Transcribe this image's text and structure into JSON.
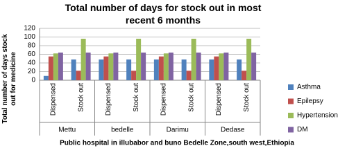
{
  "chart_data": {
    "type": "bar",
    "title": "Total number of days for  stock out in most recent 6 months",
    "y_label": "Total number of days stock out for medicine",
    "x_label": "Public hospital in illubabor and buno Bedelle Zone,south west,Ethiopia",
    "groups": [
      "Mettu",
      "bedelle",
      "Darimu",
      "Dedase"
    ],
    "categories": [
      "Dispensed",
      "Stock out",
      "Dispensed",
      "Stock out",
      "Dispensed",
      "Stock out",
      "Dispensed",
      "Stock out"
    ],
    "series": [
      {
        "name": "Asthma",
        "color": "#4f81bd",
        "values": [
          10,
          48,
          48,
          48,
          48,
          48,
          48,
          48
        ]
      },
      {
        "name": "Epilepsy",
        "color": "#c0504d",
        "values": [
          55,
          22,
          55,
          22,
          55,
          22,
          55,
          22
        ]
      },
      {
        "name": "Hypertension",
        "color": "#9bbb59",
        "values": [
          62,
          96,
          62,
          96,
          62,
          96,
          62,
          96
        ]
      },
      {
        "name": "DM",
        "color": "#8064a2",
        "values": [
          64,
          64,
          64,
          64,
          64,
          64,
          64,
          64
        ]
      }
    ],
    "ylim": [
      0,
      120
    ],
    "yticks": [
      0,
      20,
      40,
      60,
      80,
      100,
      120
    ],
    "grid": true,
    "legend": "right"
  }
}
